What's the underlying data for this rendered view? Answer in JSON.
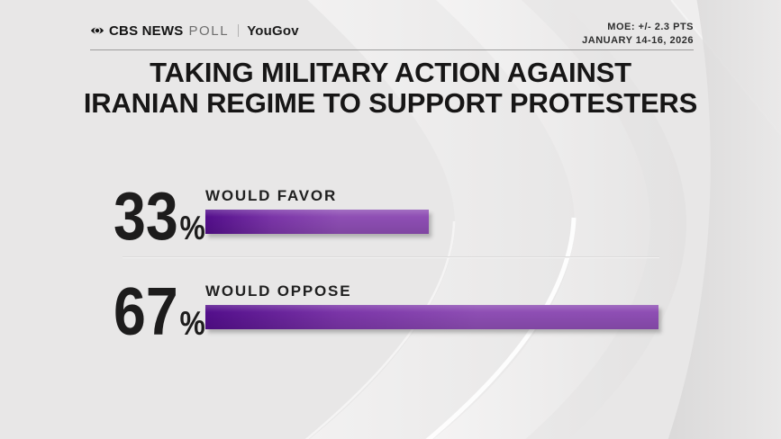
{
  "header": {
    "brand_cbs": "CBS NEWS",
    "brand_poll": "POLL",
    "brand_partner": "YouGov",
    "moe": "MOE: +/- 2.3 PTS",
    "date": "JANUARY 14-16, 2026"
  },
  "title": {
    "line1": "TAKING MILITARY ACTION AGAINST",
    "line2": "IRANIAN REGIME TO SUPPORT PROTESTERS"
  },
  "chart_data": {
    "type": "bar",
    "orientation": "horizontal",
    "title": "TAKING MILITARY ACTION AGAINST IRANIAN REGIME TO SUPPORT PROTESTERS",
    "categories": [
      "WOULD FAVOR",
      "WOULD OPPOSE"
    ],
    "values": [
      33,
      67
    ],
    "value_suffix": "%",
    "xlim": [
      0,
      100
    ],
    "grid": false,
    "legend": false,
    "bar_gradient": {
      "start": "#530e8b",
      "mid": "#7b35a8",
      "end": "#8e4eb4"
    }
  },
  "rows": [
    {
      "value": "33",
      "suffix": "%",
      "label": "WOULD FAVOR"
    },
    {
      "value": "67",
      "suffix": "%",
      "label": "WOULD OPPOSE"
    }
  ],
  "colors": {
    "background": "#e8e7e7",
    "text_dark": "#1d1c1c",
    "poll_gray": "#6e6e6e",
    "rule_gray": "#9e9d9d",
    "bar_purple_dark": "#530e8b",
    "bar_purple_light": "#8e4eb4"
  }
}
